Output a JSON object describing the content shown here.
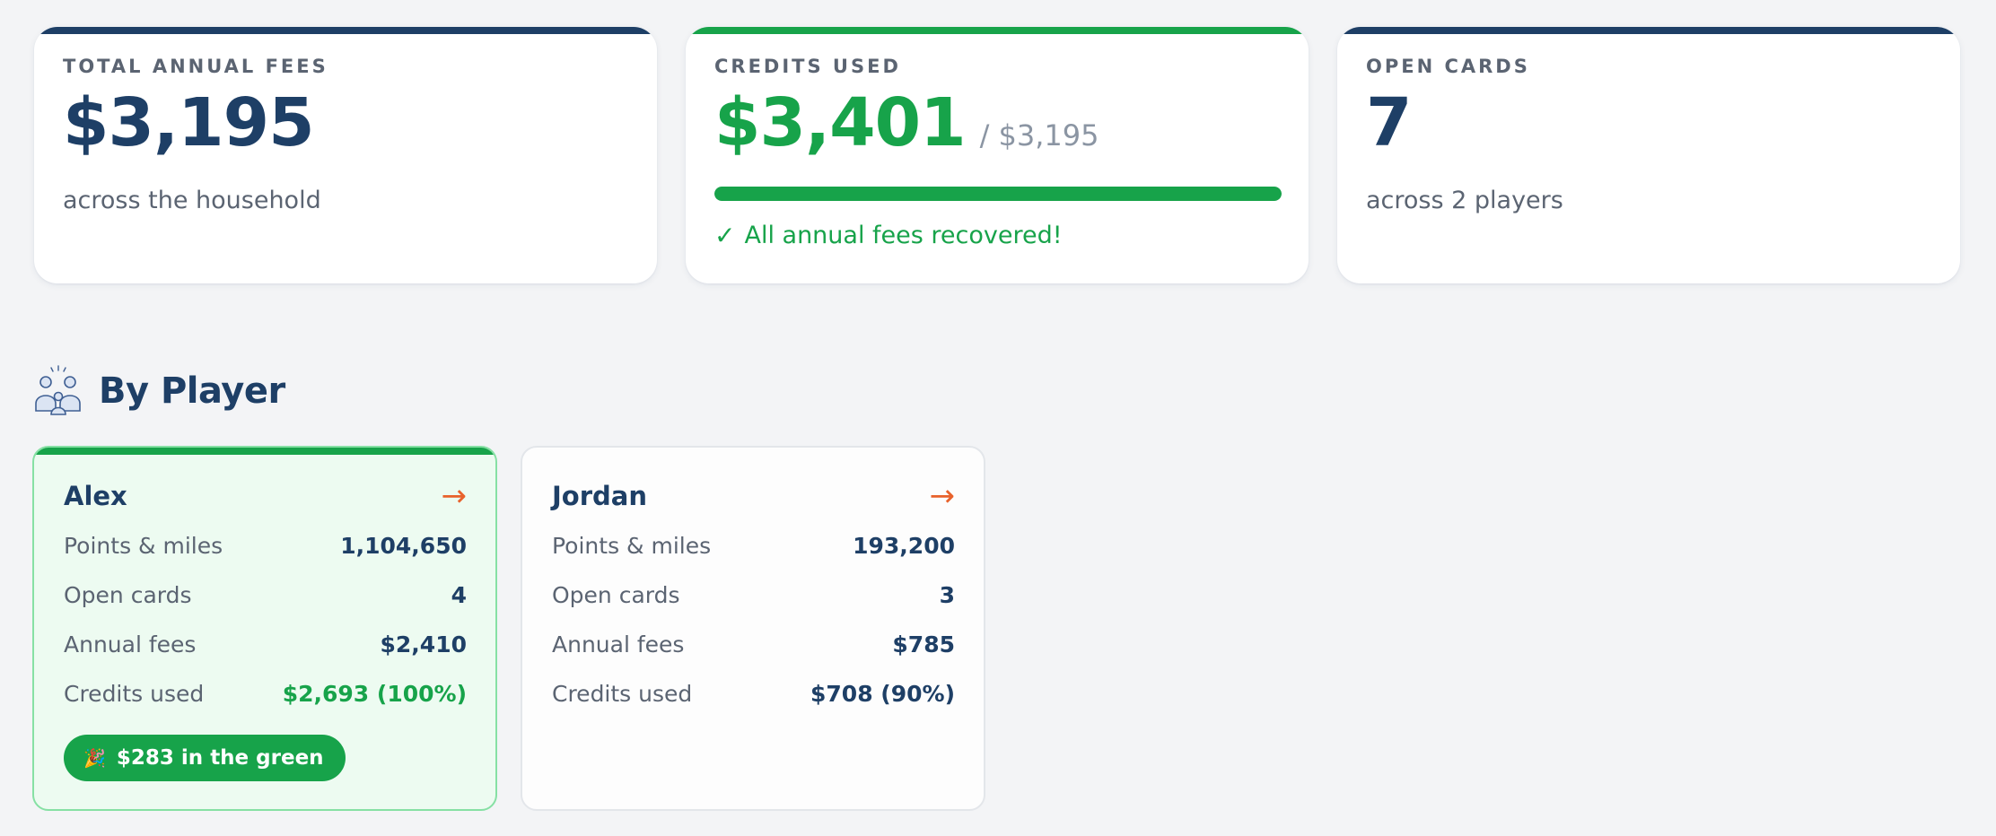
{
  "summary": {
    "total_fees": {
      "label": "TOTAL ANNUAL FEES",
      "value": "$3,195",
      "sub": "across the household"
    },
    "credits_used": {
      "label": "CREDITS USED",
      "value": "$3,401",
      "of": "/ $3,195",
      "progress_fraction": 1.0,
      "check_icon": "✓",
      "status": "All annual fees recovered!"
    },
    "open_cards": {
      "label": "OPEN CARDS",
      "value": "7",
      "sub": "across 2 players"
    }
  },
  "section": {
    "icon": "family-icon",
    "title": "By Player"
  },
  "players": [
    {
      "name": "Alex",
      "arrow": "→",
      "rows": [
        {
          "label": "Points & miles",
          "value": "1,104,650"
        },
        {
          "label": "Open cards",
          "value": "4"
        },
        {
          "label": "Annual fees",
          "value": "$2,410"
        },
        {
          "label": "Credits used",
          "value": "$2,693 (100%)"
        }
      ],
      "badge_icon": "🎉",
      "badge": "$283 in the green"
    },
    {
      "name": "Jordan",
      "arrow": "→",
      "rows": [
        {
          "label": "Points & miles",
          "value": "193,200"
        },
        {
          "label": "Open cards",
          "value": "3"
        },
        {
          "label": "Annual fees",
          "value": "$785"
        },
        {
          "label": "Credits used",
          "value": "$708 (90%)"
        }
      ]
    }
  ],
  "colors": {
    "navy": "#1e3f66",
    "green": "#17a34a",
    "accent_orange": "#e8622c",
    "muted": "#5b6472"
  }
}
